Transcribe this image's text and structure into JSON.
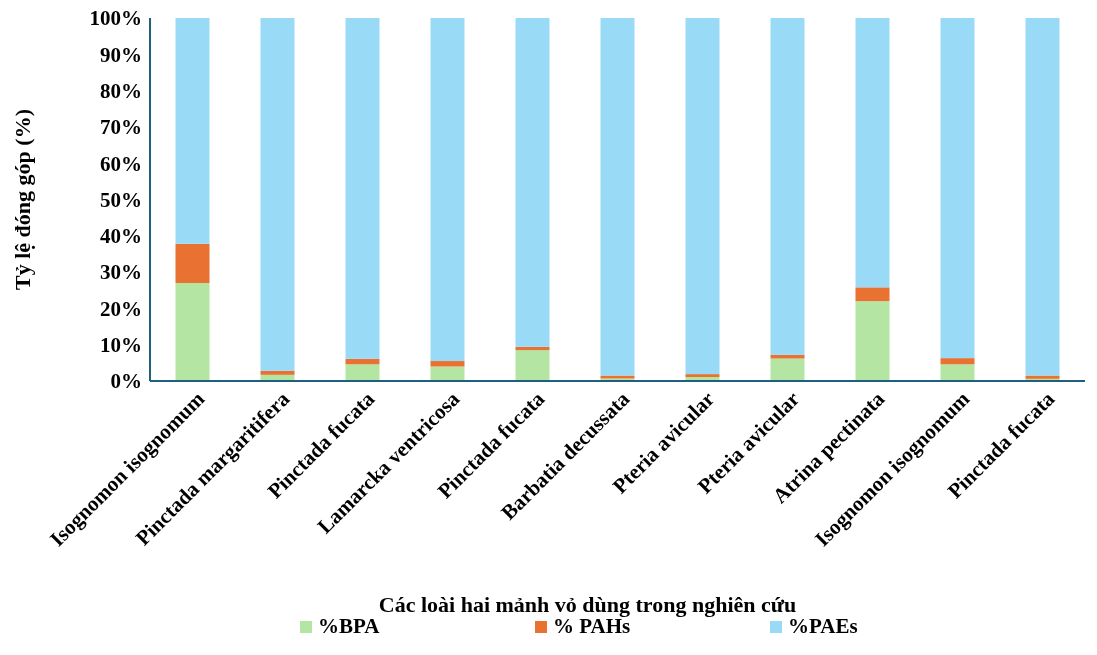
{
  "chart_data": {
    "type": "bar",
    "stacked": true,
    "xlabel": "Các loài hai mảnh vỏ dùng trong nghiên cứu",
    "ylabel": "Tỷ lệ đóng góp (%)",
    "categories": [
      "Isognomon isognomum",
      "Pinctada margaritifera",
      "Pinctada fucata",
      "Lamarcka ventricosa",
      "Pinctada fucata",
      "Barbatia decussata",
      "Pteria avicular",
      "Pteria avicular",
      "Atrina pectinata",
      "Isognomon isognomum",
      "Pinctada fucata"
    ],
    "series": [
      {
        "name": "%BPA",
        "color": "#b5e5a2",
        "values": [
          27,
          1.7,
          4.6,
          4.0,
          8.5,
          0.7,
          1.1,
          6.2,
          22.0,
          4.6,
          0.6
        ]
      },
      {
        "name": "% PAHs",
        "color": "#e97132",
        "values": [
          10.8,
          1.1,
          1.5,
          1.5,
          0.9,
          0.8,
          0.8,
          1.0,
          3.8,
          1.7,
          0.9
        ]
      },
      {
        "name": "%PAEs",
        "color": "#99dbf7",
        "values": [
          62.2,
          97.2,
          93.9,
          94.5,
          90.6,
          98.5,
          98.1,
          92.8,
          74.2,
          93.7,
          98.5
        ]
      }
    ],
    "ylim": [
      0,
      100
    ],
    "yticks": [
      {
        "value": 0,
        "label": "0%"
      },
      {
        "value": 10,
        "label": "10%"
      },
      {
        "value": 20,
        "label": "20%"
      },
      {
        "value": 30,
        "label": "30%"
      },
      {
        "value": 40,
        "label": "40%"
      },
      {
        "value": 50,
        "label": "50%"
      },
      {
        "value": 60,
        "label": "60%"
      },
      {
        "value": 70,
        "label": "70%"
      },
      {
        "value": 80,
        "label": "80%"
      },
      {
        "value": 90,
        "label": "90%"
      },
      {
        "value": 100,
        "label": "100%"
      }
    ],
    "grid": false,
    "legend": "bottom"
  }
}
